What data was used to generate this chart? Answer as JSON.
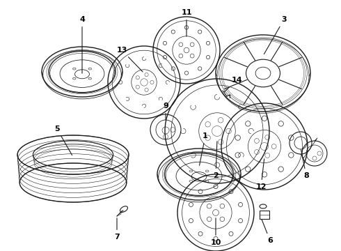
{
  "bg_color": "#ffffff",
  "line_color": "#1a1a1a",
  "label_color": "#000000",
  "fig_w": 4.9,
  "fig_h": 3.6,
  "dpi": 100
}
